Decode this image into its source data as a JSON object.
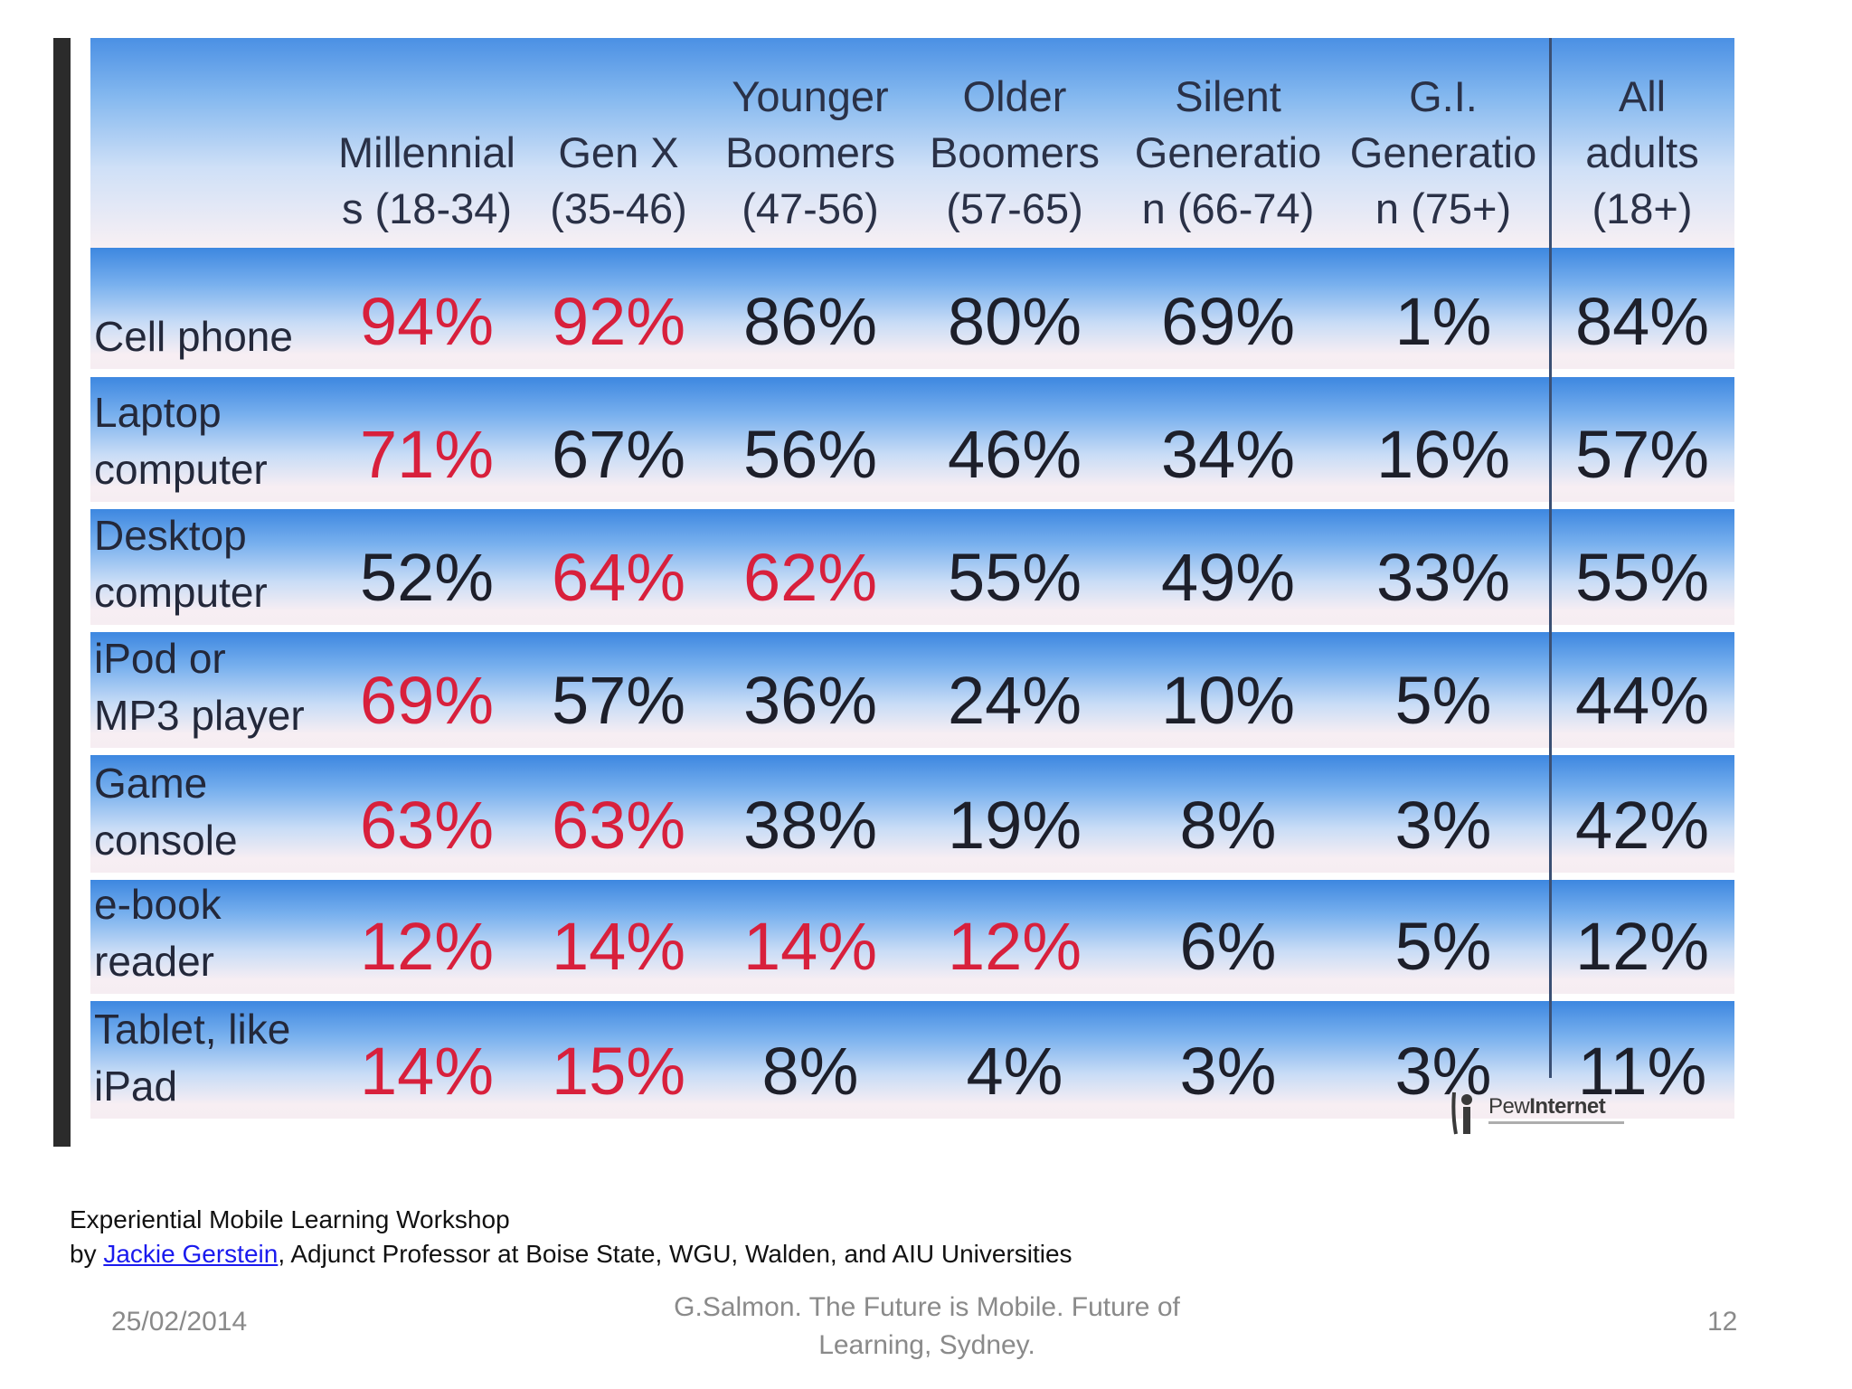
{
  "table": {
    "columns": [
      {
        "lines": [
          "Millennial",
          "s (18-34)"
        ]
      },
      {
        "lines": [
          "Gen X",
          "(35-46)"
        ]
      },
      {
        "lines": [
          "Younger",
          "Boomers",
          "(47-56)"
        ]
      },
      {
        "lines": [
          "Older",
          "Boomers",
          "(57-65)"
        ]
      },
      {
        "lines": [
          "Silent",
          "Generatio",
          "n (66-74)"
        ]
      },
      {
        "lines": [
          "G.I.",
          "Generatio",
          "n (75+)"
        ]
      },
      {
        "lines": [
          "All",
          "adults",
          "(18+)"
        ]
      }
    ],
    "rows": [
      {
        "label": [
          "Cell phone"
        ],
        "values": [
          "94%",
          "92%",
          "86%",
          "80%",
          "69%",
          "1%",
          "84%"
        ],
        "highlight": [
          true,
          true,
          false,
          false,
          false,
          false,
          false
        ]
      },
      {
        "label": [
          "Laptop",
          "computer"
        ],
        "values": [
          "71%",
          "67%",
          "56%",
          "46%",
          "34%",
          "16%",
          "57%"
        ],
        "highlight": [
          true,
          false,
          false,
          false,
          false,
          false,
          false
        ]
      },
      {
        "label": [
          "Desktop",
          "computer"
        ],
        "values": [
          "52%",
          "64%",
          "62%",
          "55%",
          "49%",
          "33%",
          "55%"
        ],
        "highlight": [
          false,
          true,
          true,
          false,
          false,
          false,
          false
        ]
      },
      {
        "label": [
          "iPod or",
          "MP3 player"
        ],
        "values": [
          "69%",
          "57%",
          "36%",
          "24%",
          "10%",
          "5%",
          "44%"
        ],
        "highlight": [
          true,
          false,
          false,
          false,
          false,
          false,
          false
        ]
      },
      {
        "label": [
          "Game",
          "console"
        ],
        "values": [
          "63%",
          "63%",
          "38%",
          "19%",
          "8%",
          "3%",
          "42%"
        ],
        "highlight": [
          true,
          true,
          false,
          false,
          false,
          false,
          false
        ]
      },
      {
        "label": [
          "e-book",
          "reader"
        ],
        "values": [
          "12%",
          "14%",
          "14%",
          "12%",
          "6%",
          "5%",
          "12%"
        ],
        "highlight": [
          true,
          true,
          true,
          true,
          false,
          false,
          false
        ]
      },
      {
        "label": [
          "Tablet, like",
          "iPad"
        ],
        "values": [
          "14%",
          "15%",
          "8%",
          "4%",
          "3%",
          "3%",
          "11%"
        ],
        "highlight": [
          true,
          true,
          false,
          false,
          false,
          false,
          false
        ]
      }
    ],
    "source_logo": {
      "text_light": "Pew",
      "text_bold": "Internet"
    }
  },
  "colors": {
    "highlight": "#d8203c",
    "normal": "#1d1f2a",
    "link": "#1a1aee"
  },
  "caption": {
    "line1": "Experiential Mobile Learning Workshop",
    "by": "by ",
    "author_link": "Jackie Gerstein",
    "affiliation": ", Adjunct Professor at Boise State, WGU, Walden, and AIU Universities"
  },
  "footer": {
    "date": "25/02/2014",
    "center_line1": "G.Salmon. The Future is Mobile. Future of",
    "center_line2": "Learning, Sydney.",
    "page": "12"
  }
}
